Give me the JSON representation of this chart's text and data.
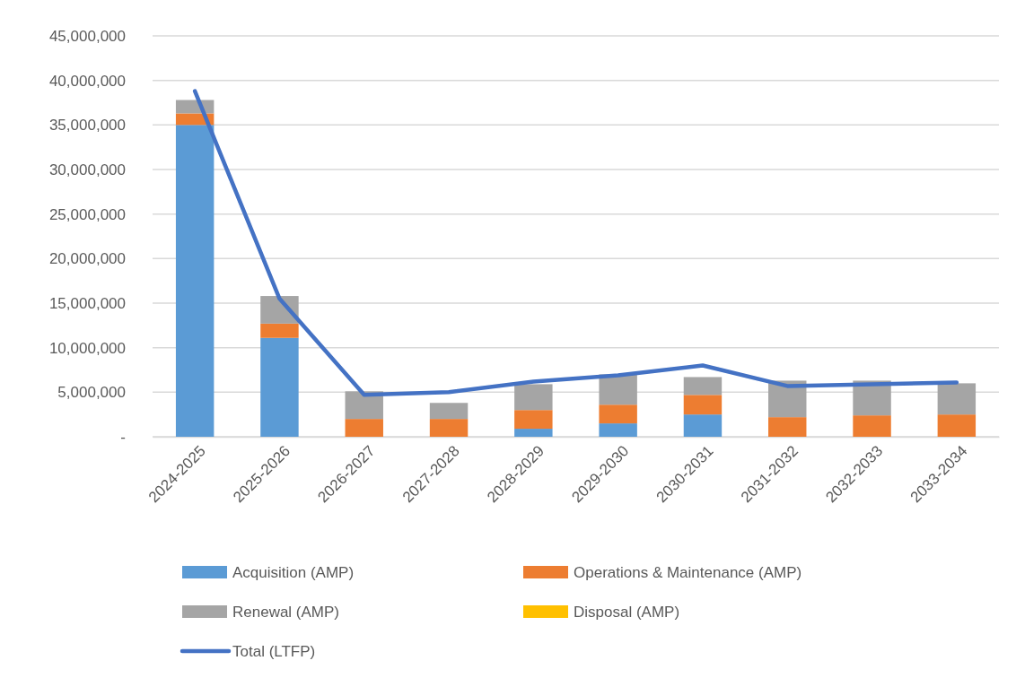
{
  "chart_data": {
    "type": "bar",
    "stacked": true,
    "categories": [
      "2024-2025",
      "2025-2026",
      "2026-2027",
      "2027-2028",
      "2028-2029",
      "2029-2030",
      "2030-2031",
      "2031-2032",
      "2032-2033",
      "2033-2034"
    ],
    "series": [
      {
        "name": "Acquisition (AMP)",
        "color": "#5b9bd5",
        "values": [
          35000000,
          11100000,
          0,
          0,
          900000,
          1500000,
          2500000,
          0,
          0,
          0
        ]
      },
      {
        "name": "Operations & Maintenance (AMP)",
        "color": "#ed7d31",
        "values": [
          1300000,
          1600000,
          2000000,
          2000000,
          2100000,
          2100000,
          2200000,
          2200000,
          2400000,
          2500000
        ]
      },
      {
        "name": "Renewal (AMP)",
        "color": "#a5a5a5",
        "values": [
          1500000,
          3100000,
          3100000,
          1800000,
          2900000,
          3400000,
          2000000,
          4100000,
          3900000,
          3500000
        ]
      },
      {
        "name": "Disposal (AMP)",
        "color": "#ffc000",
        "values": [
          0,
          0,
          0,
          0,
          0,
          0,
          0,
          0,
          0,
          0
        ]
      },
      {
        "name": "Total (LTFP)",
        "type": "line",
        "color": "#4472c4",
        "values": [
          38800000,
          15500000,
          4700000,
          5000000,
          6200000,
          6900000,
          8000000,
          5700000,
          5900000,
          6100000
        ]
      }
    ],
    "ylim": [
      0,
      45000000
    ],
    "yticks": [
      {
        "value": 0,
        "label": "-"
      },
      {
        "value": 5000000,
        "label": "5,000,000"
      },
      {
        "value": 10000000,
        "label": "10,000,000"
      },
      {
        "value": 15000000,
        "label": "15,000,000"
      },
      {
        "value": 20000000,
        "label": "20,000,000"
      },
      {
        "value": 25000000,
        "label": "25,000,000"
      },
      {
        "value": 30000000,
        "label": "30,000,000"
      },
      {
        "value": 35000000,
        "label": "35,000,000"
      },
      {
        "value": 40000000,
        "label": "40,000,000"
      },
      {
        "value": 45000000,
        "label": "45,000,000"
      }
    ],
    "grid": "y",
    "legend": "bottom",
    "marker": "none"
  }
}
